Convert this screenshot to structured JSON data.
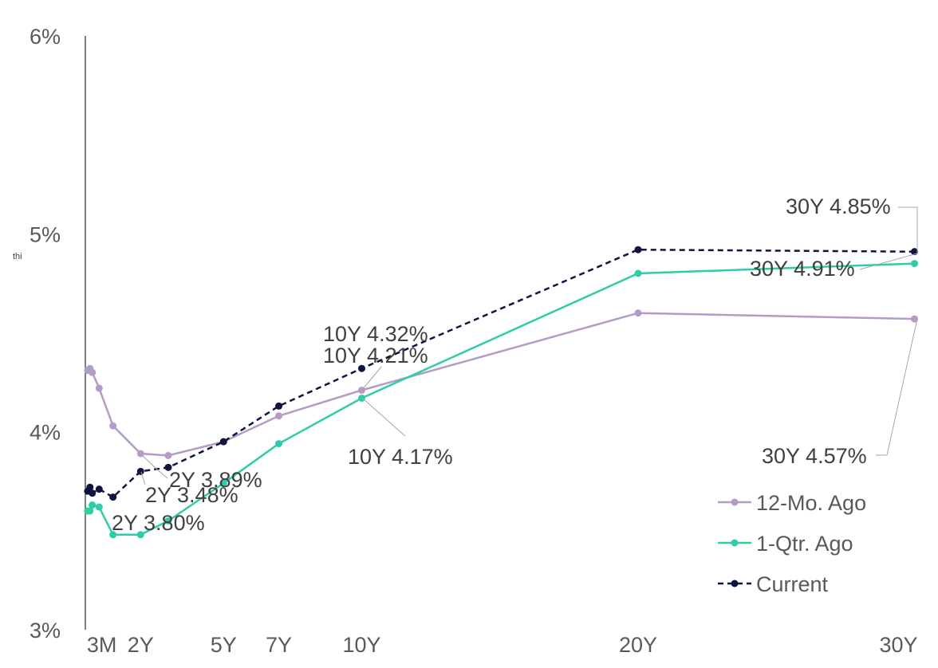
{
  "stray_text": "thi",
  "chart_data": {
    "type": "line",
    "title": "",
    "xlabel": "",
    "ylabel": "",
    "y_unit": "%",
    "ylim": [
      3,
      6
    ],
    "y_ticks": [
      {
        "value": 3,
        "label": "3%"
      },
      {
        "value": 4,
        "label": "4%"
      },
      {
        "value": 5,
        "label": "5%"
      },
      {
        "value": 6,
        "label": "6%"
      }
    ],
    "xlim_years": [
      0,
      30
    ],
    "x_ticks": [
      {
        "years": 0.25,
        "label": "3M"
      },
      {
        "years": 2,
        "label": "2Y"
      },
      {
        "years": 5,
        "label": "5Y"
      },
      {
        "years": 7,
        "label": "7Y"
      },
      {
        "years": 10,
        "label": "10Y"
      },
      {
        "years": 20,
        "label": "20Y"
      },
      {
        "years": 30,
        "label": "30Y"
      }
    ],
    "grid": false,
    "legend_position": "bottom-right",
    "series": [
      {
        "name": "12-Mo. Ago",
        "color": "#b49bc8",
        "dashed": false,
        "points": [
          {
            "years": 0.083,
            "value": 4.31
          },
          {
            "years": 0.167,
            "value": 4.32
          },
          {
            "years": 0.25,
            "value": 4.3
          },
          {
            "years": 0.5,
            "value": 4.22
          },
          {
            "years": 1,
            "value": 4.03
          },
          {
            "years": 2,
            "value": 3.89
          },
          {
            "years": 3,
            "value": 3.88
          },
          {
            "years": 5,
            "value": 3.95
          },
          {
            "years": 7,
            "value": 4.08
          },
          {
            "years": 10,
            "value": 4.21
          },
          {
            "years": 20,
            "value": 4.6
          },
          {
            "years": 30,
            "value": 4.57
          }
        ]
      },
      {
        "name": "1-Qtr. Ago",
        "color": "#2ecda7",
        "dashed": false,
        "points": [
          {
            "years": 0.083,
            "value": 3.6
          },
          {
            "years": 0.167,
            "value": 3.6
          },
          {
            "years": 0.25,
            "value": 3.63
          },
          {
            "years": 0.5,
            "value": 3.62
          },
          {
            "years": 1,
            "value": 3.48
          },
          {
            "years": 2,
            "value": 3.48
          },
          {
            "years": 3,
            "value": 3.55
          },
          {
            "years": 5,
            "value": 3.74
          },
          {
            "years": 7,
            "value": 3.94
          },
          {
            "years": 10,
            "value": 4.17
          },
          {
            "years": 20,
            "value": 4.8
          },
          {
            "years": 30,
            "value": 4.85
          }
        ]
      },
      {
        "name": "Current",
        "color": "#0f1440",
        "dashed": true,
        "points": [
          {
            "years": 0.083,
            "value": 3.7
          },
          {
            "years": 0.167,
            "value": 3.72
          },
          {
            "years": 0.25,
            "value": 3.69
          },
          {
            "years": 0.5,
            "value": 3.71
          },
          {
            "years": 1,
            "value": 3.67
          },
          {
            "years": 2,
            "value": 3.8
          },
          {
            "years": 3,
            "value": 3.82
          },
          {
            "years": 5,
            "value": 3.95
          },
          {
            "years": 7,
            "value": 4.13
          },
          {
            "years": 10,
            "value": 4.32
          },
          {
            "years": 20,
            "value": 4.92
          },
          {
            "years": 30,
            "value": 4.91
          }
        ]
      }
    ],
    "annotations": [
      {
        "text": "30Y 4.85%",
        "ax": 985,
        "ay": 268,
        "anchor": "start",
        "leader": [
          1126,
          260,
          1150,
          260,
          1150,
          318
        ]
      },
      {
        "text": "30Y 4.91%",
        "ax": 940,
        "ay": 346,
        "anchor": "start",
        "leader": [
          1078,
          338,
          1150,
          318
        ]
      },
      {
        "text": "30Y 4.57%",
        "ax": 955,
        "ay": 581,
        "anchor": "start",
        "leader": [
          1098,
          571,
          1112,
          571,
          1150,
          400
        ]
      },
      {
        "text": "10Y 4.32%",
        "ax": 405,
        "ay": 428,
        "anchor": "start",
        "leader": null
      },
      {
        "text": "10Y 4.21%",
        "ax": 405,
        "ay": 455,
        "anchor": "start",
        "leader": [
          455,
          488,
          478,
          460
        ]
      },
      {
        "text": "10Y 4.17%",
        "ax": 436,
        "ay": 582,
        "anchor": "start",
        "leader": [
          455,
          500,
          508,
          547
        ]
      },
      {
        "text": "2Y 3.89%",
        "ax": 212,
        "ay": 611,
        "anchor": "start",
        "leader": [
          177,
          570,
          196,
          588,
          210,
          600
        ]
      },
      {
        "text": "2Y 3.48%",
        "ax": 182,
        "ay": 630,
        "anchor": "start",
        "leader": null
      },
      {
        "text": "2Y 3.80%",
        "ax": 140,
        "ay": 665,
        "anchor": "start",
        "leader": [
          177,
          592,
          182,
          608
        ]
      }
    ]
  }
}
